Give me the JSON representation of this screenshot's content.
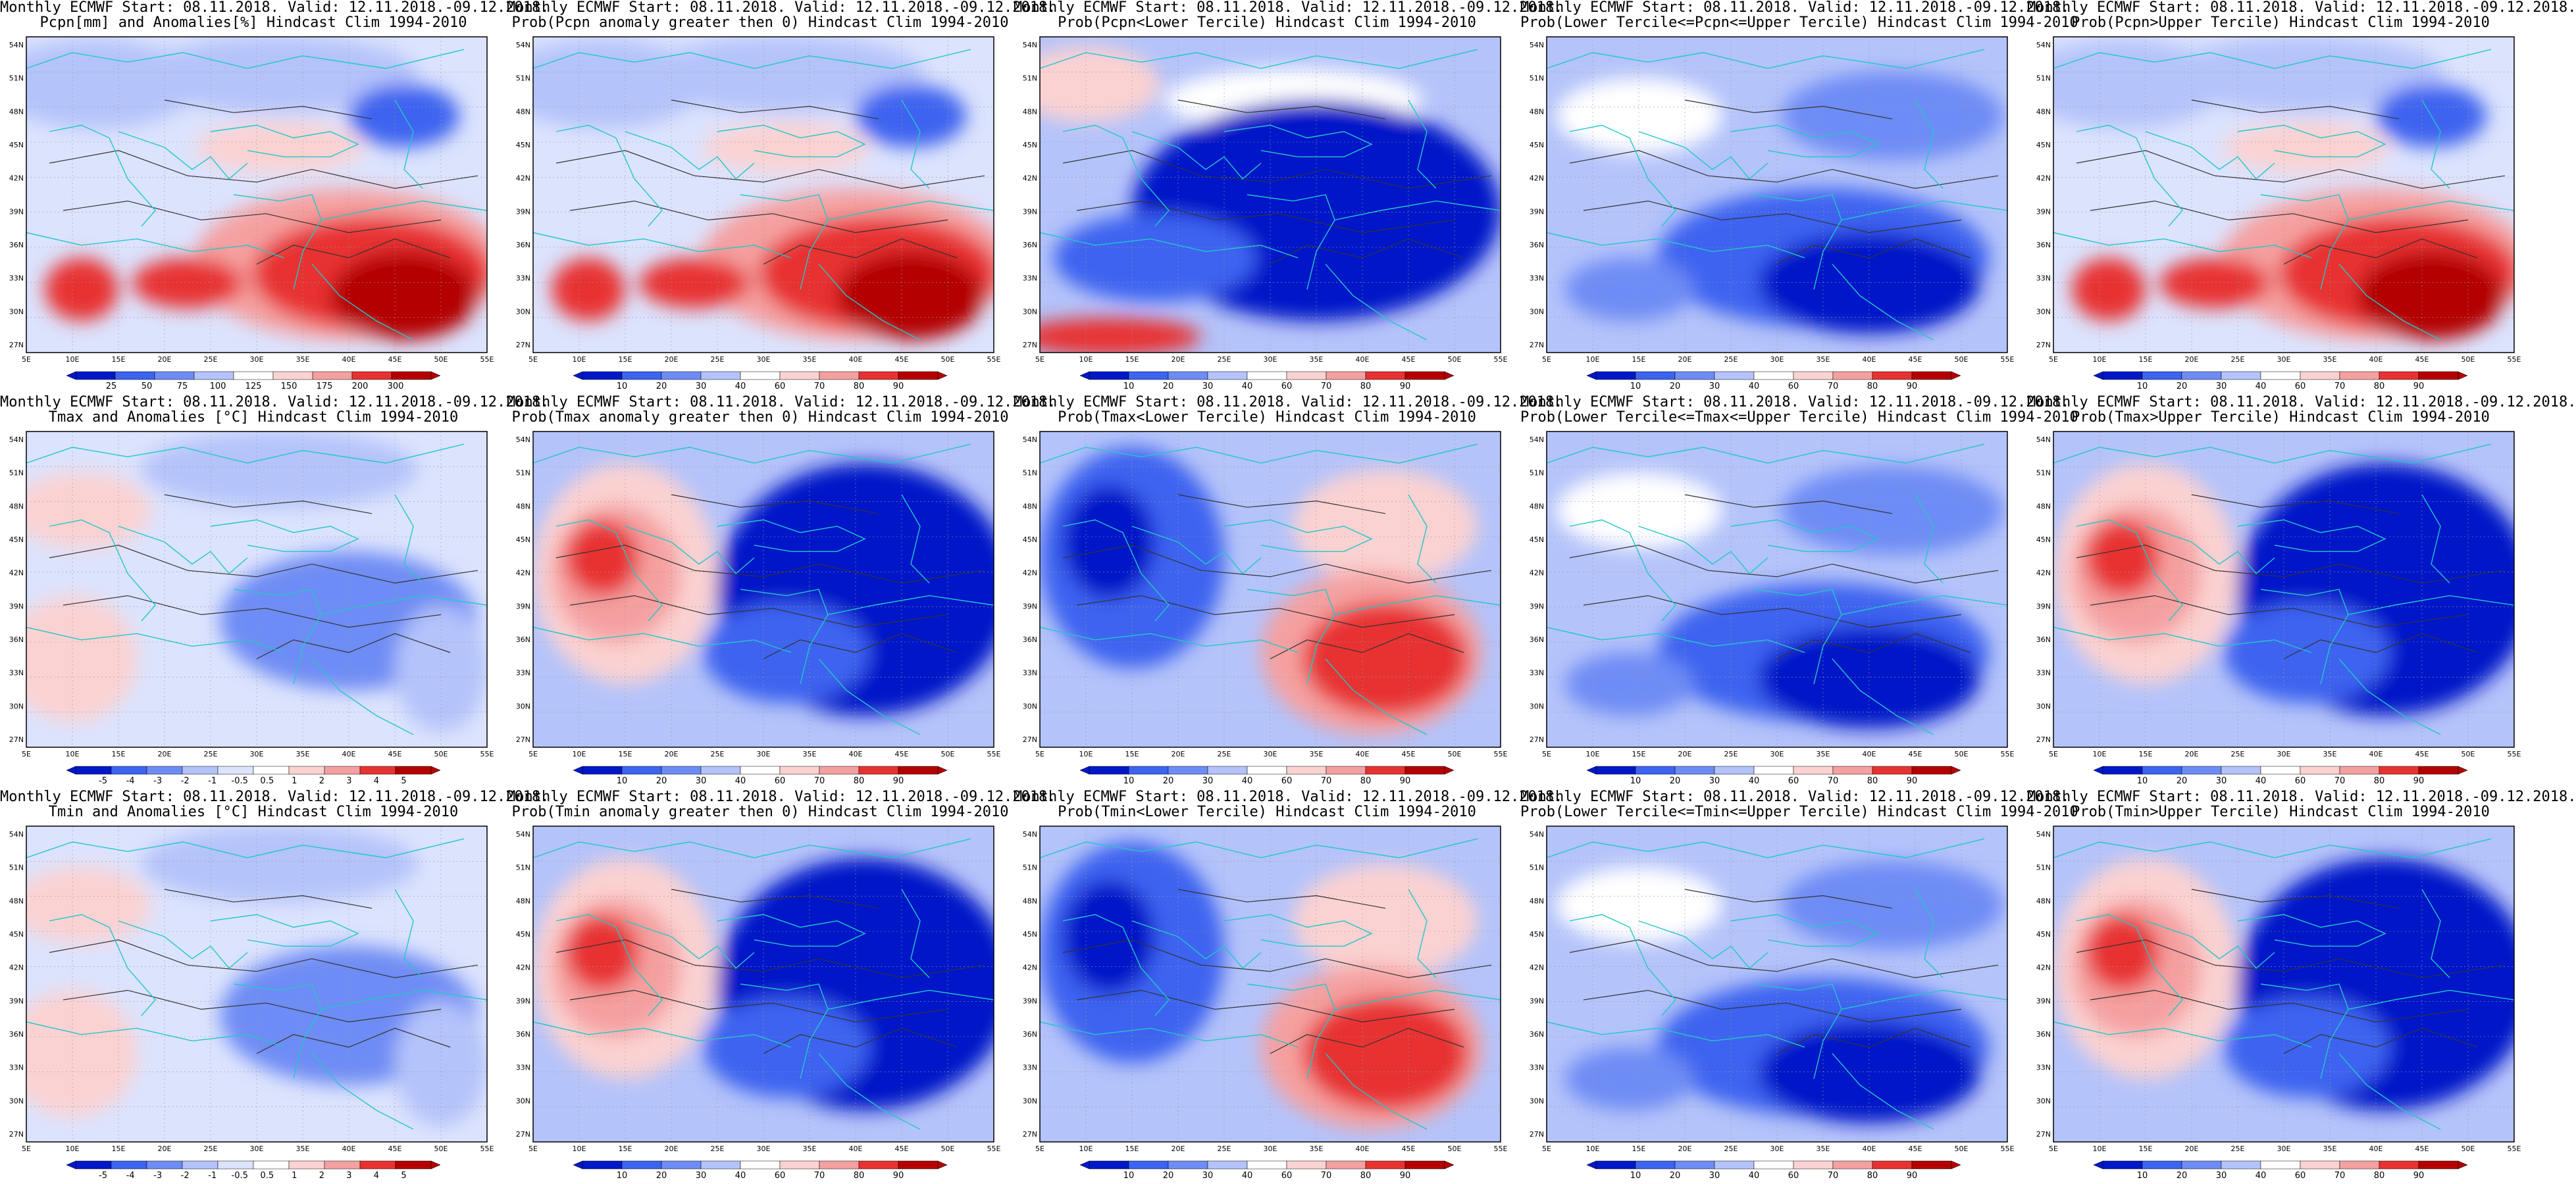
{
  "lat_ticks": [
    "54N",
    "51N",
    "48N",
    "45N",
    "42N",
    "39N",
    "36N",
    "33N",
    "30N",
    "27N"
  ],
  "lon_ticks": [
    "5E",
    "10E",
    "15E",
    "20E",
    "25E",
    "30E",
    "35E",
    "40E",
    "45E",
    "50E",
    "55E"
  ],
  "colors": {
    "coastline": "#20c8c8",
    "contour": "#333333",
    "deep_blue": "#0018c8",
    "blue": "#3c64f0",
    "mid_blue": "#6e8cf5",
    "light_blue": "#b4c3fa",
    "pale_blue": "#dce3fd",
    "white": "#ffffff",
    "pale_red": "#fbd2d2",
    "light_red": "#f5a0a0",
    "red": "#e83232",
    "deep_red": "#b40000"
  },
  "rows": [
    {
      "panels": [
        {
          "title_line1": "Monthly ECMWF Start: 08.11.2018. Valid: 12.11.2018.-09.12.2018.",
          "title_line2": "Pcpn[mm] and Anomalies[%] Hindcast Clim 1994-2010",
          "scheme": "anomaly",
          "colorbar_labels": [
            "25",
            "50",
            "75",
            "100",
            "125",
            "150",
            "175",
            "200",
            "300"
          ]
        },
        {
          "title_line1": "Monthly ECMWF Start: 08.11.2018. Valid: 12.11.2018.-09.12.2018.",
          "title_line2": "Prob(Pcpn anomaly greater then 0) Hindcast Clim 1994-2010",
          "scheme": "anomaly",
          "colorbar_labels": [
            "10",
            "20",
            "30",
            "40",
            "60",
            "70",
            "80",
            "90"
          ]
        },
        {
          "title_line1": "Monthly ECMWF Start: 08.11.2018. Valid: 12.11.2018.-09.12.2018.",
          "title_line2": "Prob(Pcpn<Lower Tercile) Hindcast Clim 1994-2010",
          "scheme": "inverse",
          "colorbar_labels": [
            "10",
            "20",
            "30",
            "40",
            "60",
            "70",
            "80",
            "90"
          ]
        },
        {
          "title_line1": "Monthly ECMWF Start: 08.11.2018. Valid: 12.11.2018.-09.12.2018.",
          "title_line2": "Prob(Lower Tercile<=Pcpn<=Upper Tercile) Hindcast Clim 1994-2010",
          "scheme": "blue",
          "colorbar_labels": [
            "10",
            "20",
            "30",
            "40",
            "60",
            "70",
            "80",
            "90"
          ]
        },
        {
          "title_line1": "Monthly ECMWF Start: 08.11.2018. Valid: 12.11.2018.-09.12.2018.",
          "title_line2": "Prob(Pcpn>Upper Tercile) Hindcast Clim 1994-2010",
          "scheme": "anomaly",
          "colorbar_labels": [
            "10",
            "20",
            "30",
            "40",
            "60",
            "70",
            "80",
            "90"
          ]
        }
      ]
    },
    {
      "panels": [
        {
          "title_line1": "Monthly ECMWF Start: 08.11.2018. Valid: 12.11.2018.-09.12.2018.",
          "title_line2": "Tmax and Anomalies [°C] Hindcast Clim 1994-2010",
          "scheme": "cool",
          "colorbar_labels": [
            "-5",
            "-4",
            "-3",
            "-2",
            "-1",
            "-0.5",
            "0.5",
            "1",
            "2",
            "3",
            "4",
            "5"
          ]
        },
        {
          "title_line1": "Monthly ECMWF Start: 08.11.2018. Valid: 12.11.2018.-09.12.2018.",
          "title_line2": "Prob(Tmax anomaly greater then 0) Hindcast Clim 1994-2010",
          "scheme": "west_red",
          "colorbar_labels": [
            "10",
            "20",
            "30",
            "40",
            "60",
            "70",
            "80",
            "90"
          ]
        },
        {
          "title_line1": "Monthly ECMWF Start: 08.11.2018. Valid: 12.11.2018.-09.12.2018.",
          "title_line2": "Prob(Tmax<Lower Tercile) Hindcast Clim 1994-2010",
          "scheme": "east_red",
          "colorbar_labels": [
            "10",
            "20",
            "30",
            "40",
            "60",
            "70",
            "80",
            "90"
          ]
        },
        {
          "title_line1": "Monthly ECMWF Start: 08.11.2018. Valid: 12.11.2018.-09.12.2018.",
          "title_line2": "Prob(Lower Tercile<=Tmax<=Upper Tercile) Hindcast Clim 1994-2010",
          "scheme": "blue",
          "colorbar_labels": [
            "10",
            "20",
            "30",
            "40",
            "60",
            "70",
            "80",
            "90"
          ]
        },
        {
          "title_line1": "Monthly ECMWF Start: 08.11.2018. Valid: 12.11.2018.-09.12.2018.",
          "title_line2": "Prob(Tmax>Upper Tercile) Hindcast Clim 1994-2010",
          "scheme": "west_red",
          "colorbar_labels": [
            "10",
            "20",
            "30",
            "40",
            "60",
            "70",
            "80",
            "90"
          ]
        }
      ]
    },
    {
      "panels": [
        {
          "title_line1": "Monthly ECMWF Start: 08.11.2018. Valid: 12.11.2018.-09.12.2018.",
          "title_line2": "Tmin and Anomalies [°C] Hindcast Clim 1994-2010",
          "scheme": "cool",
          "colorbar_labels": [
            "-5",
            "-4",
            "-3",
            "-2",
            "-1",
            "-0.5",
            "0.5",
            "1",
            "2",
            "3",
            "4",
            "5"
          ]
        },
        {
          "title_line1": "Monthly ECMWF Start: 08.11.2018. Valid: 12.11.2018.-09.12.2018.",
          "title_line2": "Prob(Tmin anomaly greater then 0) Hindcast Clim 1994-2010",
          "scheme": "west_red",
          "colorbar_labels": [
            "10",
            "20",
            "30",
            "40",
            "60",
            "70",
            "80",
            "90"
          ]
        },
        {
          "title_line1": "Monthly ECMWF Start: 08.11.2018. Valid: 12.11.2018.-09.12.2018.",
          "title_line2": "Prob(Tmin<Lower Tercile) Hindcast Clim 1994-2010",
          "scheme": "east_red",
          "colorbar_labels": [
            "10",
            "20",
            "30",
            "40",
            "60",
            "70",
            "80",
            "90"
          ]
        },
        {
          "title_line1": "Monthly ECMWF Start: 08.11.2018. Valid: 12.11.2018.-09.12.2018.",
          "title_line2": "Prob(Lower Tercile<=Tmin<=Upper Tercile) Hindcast Clim 1994-2010",
          "scheme": "blue",
          "colorbar_labels": [
            "10",
            "20",
            "30",
            "40",
            "60",
            "70",
            "80",
            "90"
          ]
        },
        {
          "title_line1": "Monthly ECMWF Start: 08.11.2018. Valid: 12.11.2018.-09.12.2018.",
          "title_line2": "Prob(Tmin>Upper Tercile) Hindcast Clim 1994-2010",
          "scheme": "west_red",
          "colorbar_labels": [
            "10",
            "20",
            "30",
            "40",
            "60",
            "70",
            "80",
            "90"
          ]
        }
      ]
    }
  ]
}
